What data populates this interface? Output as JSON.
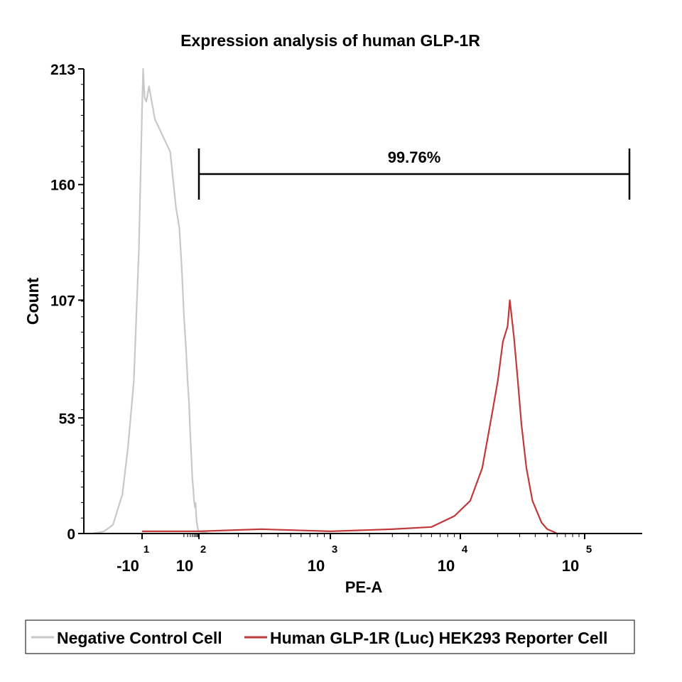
{
  "chart_data": {
    "type": "area",
    "title": "Expression analysis of human GLP-1R",
    "xlabel": "PE-A",
    "ylabel": "Count",
    "xscale": "biexponential",
    "y_ticks": [
      0,
      53,
      107,
      160,
      213
    ],
    "ylim": [
      0,
      213
    ],
    "x_ticks": [
      {
        "base": "-10",
        "exponent": "1",
        "value": -10
      },
      {
        "base": "10",
        "exponent": "2",
        "value": 100
      },
      {
        "base": "10",
        "exponent": "3",
        "value": 1000
      },
      {
        "base": "10",
        "exponent": "4",
        "value": 10000
      },
      {
        "base": "10",
        "exponent": "5",
        "value": 100000
      }
    ],
    "gate": {
      "label": "99.76%",
      "from": 100,
      "to": 200000
    },
    "legend_position": "bottom",
    "series": [
      {
        "name": "Negative Control Cell",
        "color": "#c8c8c8",
        "x": [
          -150,
          -80,
          -50,
          -30,
          -22,
          -16,
          -12,
          -10,
          -8,
          -6,
          -4,
          -2,
          0,
          4,
          8,
          12,
          16,
          20,
          25,
          30,
          35,
          40,
          45,
          50,
          55,
          60,
          65,
          70,
          75,
          80,
          90,
          100,
          120,
          150,
          200
        ],
        "y": [
          0,
          1,
          4,
          18,
          40,
          70,
          130,
          195,
          213,
          200,
          198,
          205,
          190,
          175,
          150,
          140,
          120,
          100,
          85,
          70,
          60,
          45,
          35,
          25,
          20,
          15,
          12,
          14,
          8,
          5,
          2,
          1,
          0,
          0,
          0
        ]
      },
      {
        "name": "Human GLP-1R (Luc) HEK293 Reporter Cell",
        "color": "#c0393b",
        "x": [
          -10,
          100,
          300,
          1000,
          3000,
          6000,
          9000,
          12000,
          15000,
          18000,
          20000,
          22000,
          24000,
          25000,
          27000,
          29000,
          31000,
          34000,
          38000,
          45000,
          50000,
          55000,
          60000,
          70000
        ],
        "y": [
          1,
          1,
          2,
          1,
          2,
          3,
          8,
          15,
          30,
          55,
          70,
          88,
          95,
          107,
          90,
          70,
          50,
          30,
          15,
          5,
          2,
          1,
          0,
          0
        ]
      }
    ]
  }
}
